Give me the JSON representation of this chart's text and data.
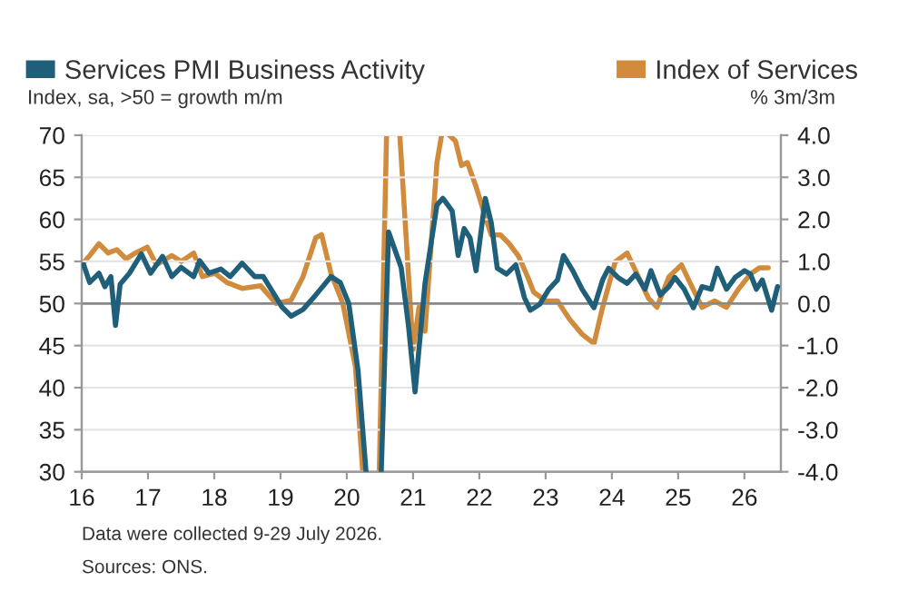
{
  "chart_data": {
    "type": "line",
    "xlim": [
      16,
      26.55
    ],
    "xticks": [
      16,
      17,
      18,
      19,
      20,
      21,
      22,
      23,
      24,
      25,
      26
    ],
    "ylim": [
      30,
      70
    ],
    "yticks": [
      30,
      35,
      40,
      45,
      50,
      55,
      60,
      65,
      70
    ],
    "y2lim": [
      -4,
      4
    ],
    "y2ticks": [
      {
        "value": -4,
        "label": "-4.0"
      },
      {
        "value": -3,
        "label": "-3.0"
      },
      {
        "value": -2,
        "label": "-2.0"
      },
      {
        "value": -1,
        "label": "-1.0"
      },
      {
        "value": 0,
        "label": "0.0"
      },
      {
        "value": 1,
        "label": "1.0"
      },
      {
        "value": 2,
        "label": "2.0"
      },
      {
        "value": 3,
        "label": "3.0"
      },
      {
        "value": 4,
        "label": "4.0"
      }
    ],
    "ylabel": "Index, sa, >50 = growth m/m",
    "y2label": "% 3m/3m",
    "grid": "y",
    "legend": "top",
    "marker": "none",
    "line_style": "solid",
    "ref_lines": [
      {
        "axis": "y",
        "value": 50,
        "label": null,
        "color": "#888888"
      }
    ],
    "annotations": [
      "Data were collected 9-29 July 2026.",
      "Sources: ONS."
    ],
    "series": [
      {
        "name": "Services PMI Business Activity",
        "color": "#1f5f7a",
        "axis": "y",
        "x": [
          16.03,
          16.12,
          16.26,
          16.35,
          16.44,
          16.51,
          16.58,
          16.72,
          16.9,
          17.04,
          17.22,
          17.36,
          17.5,
          17.69,
          17.78,
          17.92,
          18.1,
          18.24,
          18.42,
          18.61,
          18.74,
          18.88,
          19.02,
          19.16,
          19.34,
          19.53,
          19.76,
          19.9,
          20.03,
          20.17,
          20.29,
          20.4,
          20.52,
          20.63,
          20.82,
          20.93,
          21.03,
          21.18,
          21.36,
          21.45,
          21.59,
          21.68,
          21.77,
          21.86,
          21.95,
          22.09,
          22.18,
          22.27,
          22.41,
          22.55,
          22.68,
          22.77,
          22.91,
          23.05,
          23.18,
          23.27,
          23.41,
          23.55,
          23.73,
          23.86,
          23.95,
          24.09,
          24.23,
          24.36,
          24.5,
          24.59,
          24.73,
          24.86,
          24.95,
          25.09,
          25.23,
          25.36,
          25.5,
          25.59,
          25.73,
          25.86,
          26.0,
          26.09,
          26.18,
          26.27,
          26.41,
          26.5
        ],
        "values": [
          54.6,
          52.5,
          53.6,
          52,
          53.2,
          47.4,
          52.3,
          53.6,
          55.9,
          53.6,
          55.6,
          53.2,
          54.3,
          53.2,
          55.1,
          53.6,
          54.1,
          53.2,
          54.8,
          53.2,
          53.2,
          51.4,
          49.6,
          48.5,
          49.3,
          51,
          53.2,
          52.5,
          50,
          42,
          30,
          null,
          30,
          58.5,
          54.3,
          47.4,
          39.5,
          52.4,
          61.7,
          62.5,
          61,
          55.7,
          58.9,
          57.8,
          53.9,
          62.5,
          59.6,
          54.2,
          53.5,
          54.6,
          50.7,
          49.2,
          49.9,
          51.7,
          52.8,
          55.7,
          53.9,
          51.7,
          49.5,
          52.8,
          54.2,
          53.1,
          52.4,
          53.5,
          51.7,
          53.9,
          51,
          52,
          53.1,
          51.7,
          49.5,
          52,
          51.7,
          54.2,
          51.7,
          53.1,
          53.9,
          53.5,
          51.7,
          52.8,
          49.2,
          52
        ]
      },
      {
        "name": "Index of Services",
        "color": "#d08c3c",
        "axis": "y2",
        "x": [
          16.0,
          16.12,
          16.26,
          16.4,
          16.53,
          16.67,
          16.81,
          16.99,
          17.13,
          17.36,
          17.5,
          17.69,
          17.82,
          18.01,
          18.19,
          18.42,
          18.7,
          18.93,
          19.16,
          19.34,
          19.53,
          19.62,
          19.76,
          19.94,
          20.13,
          20.24,
          20.36,
          20.49,
          20.6,
          20.7,
          20.8,
          21.0,
          21.09,
          21.18,
          21.36,
          21.43,
          21.49,
          21.55,
          21.64,
          21.73,
          21.82,
          21.95,
          22.09,
          22.18,
          22.32,
          22.45,
          22.59,
          22.73,
          22.82,
          23.0,
          23.18,
          23.36,
          23.55,
          23.73,
          23.86,
          24.05,
          24.23,
          24.36,
          24.55,
          24.68,
          24.86,
          25.05,
          25.18,
          25.36,
          25.55,
          25.73,
          25.91,
          26.09,
          26.23,
          26.36
        ],
        "values": [
          0.92,
          1.14,
          1.42,
          1.2,
          1.28,
          1.06,
          1.2,
          1.34,
          0.92,
          1.14,
          1.0,
          1.2,
          0.64,
          0.72,
          0.5,
          0.36,
          0.42,
          0,
          0.08,
          0.64,
          1.56,
          1.64,
          0.72,
          0,
          -1.5,
          -4.0,
          null,
          -4.0,
          4.0,
          null,
          4.0,
          -1.09,
          -0.09,
          -0.66,
          3.35,
          4.0,
          null,
          4.0,
          3.86,
          3.28,
          3.35,
          2.78,
          2.06,
          1.63,
          1.63,
          1.42,
          1.13,
          0.63,
          0.27,
          0.06,
          0.06,
          -0.37,
          -0.73,
          -0.95,
          -0.09,
          0.99,
          1.2,
          0.77,
          0.13,
          -0.09,
          0.63,
          0.92,
          0.49,
          -0.09,
          0.06,
          -0.09,
          0.34,
          0.7,
          0.85,
          0.85
        ]
      }
    ]
  }
}
